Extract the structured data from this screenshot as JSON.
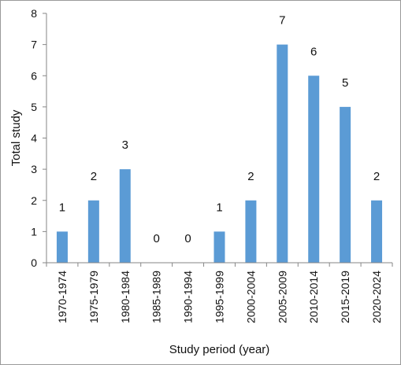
{
  "chart_data": {
    "type": "bar",
    "categories": [
      "1970-1974",
      "1975-1979",
      "1980-1984",
      "1985-1989",
      "1990-1994",
      "1995-1999",
      "2000-2004",
      "2005-2009",
      "2010-2014",
      "2015-2019",
      "2020-2024"
    ],
    "values": [
      1,
      2,
      3,
      0,
      0,
      1,
      2,
      7,
      6,
      5,
      2
    ],
    "xlabel": "Study period (year)",
    "ylabel": "Total study",
    "ylim": [
      0,
      8
    ],
    "yticks": [
      0,
      1,
      2,
      3,
      4,
      5,
      6,
      7,
      8
    ],
    "grid": false,
    "legend": "none",
    "bar_color": "#5b9bd5"
  }
}
